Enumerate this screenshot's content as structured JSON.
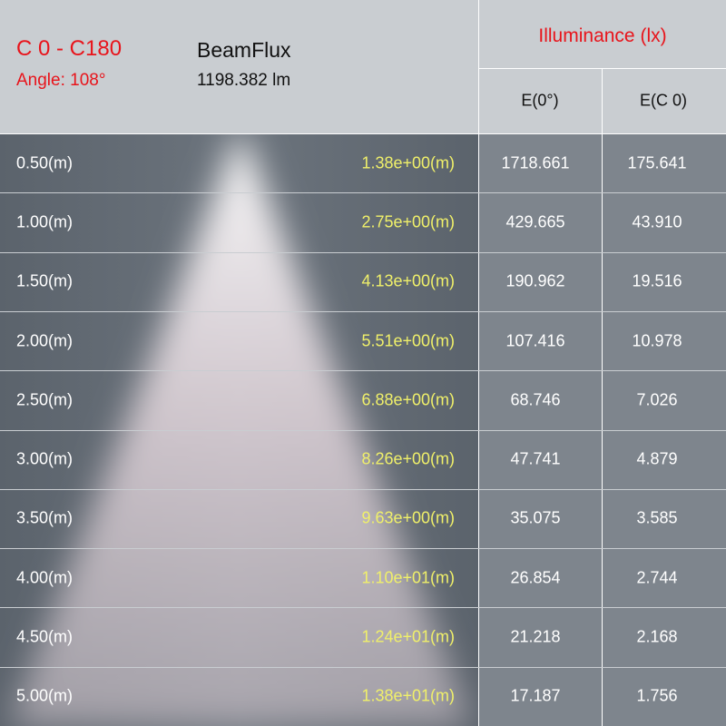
{
  "header": {
    "curve": "C 0 - C180",
    "angle": "Angle: 108°",
    "flux_title": "BeamFlux",
    "flux_value": "1198.382 lm",
    "illuminance_title": "Illuminance (lx)",
    "columns": [
      "E(0°)",
      "E(C 0)"
    ]
  },
  "table": {
    "rows": [
      [
        "0.50(m)",
        "1.38e+00(m)",
        "1718.661",
        "175.641"
      ],
      [
        "1.00(m)",
        "2.75e+00(m)",
        "429.665",
        "43.910"
      ],
      [
        "1.50(m)",
        "4.13e+00(m)",
        "190.962",
        "19.516"
      ],
      [
        "2.00(m)",
        "5.51e+00(m)",
        "107.416",
        "10.978"
      ],
      [
        "2.50(m)",
        "6.88e+00(m)",
        "68.746",
        "7.026"
      ],
      [
        "3.00(m)",
        "8.26e+00(m)",
        "47.741",
        "4.879"
      ],
      [
        "3.50(m)",
        "9.63e+00(m)",
        "35.075",
        "3.585"
      ],
      [
        "4.00(m)",
        "1.10e+01(m)",
        "26.854",
        "2.744"
      ],
      [
        "4.50(m)",
        "1.24e+01(m)",
        "21.218",
        "2.168"
      ],
      [
        "5.00(m)",
        "1.38e+01(m)",
        "17.187",
        "1.756"
      ]
    ]
  }
}
